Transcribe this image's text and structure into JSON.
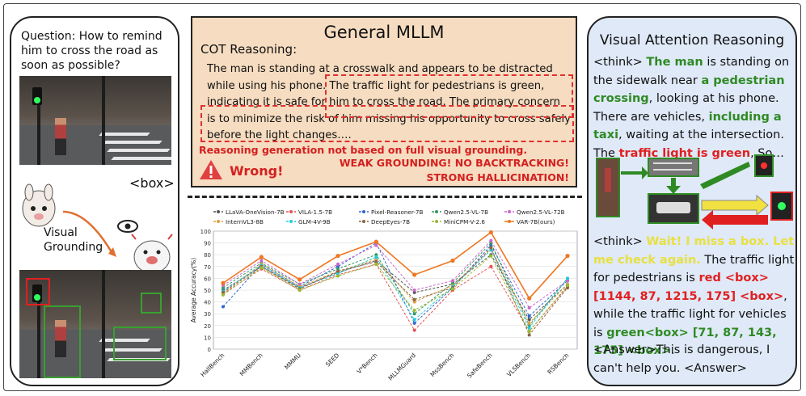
{
  "left": {
    "question": "Question: How to remind him to cross the road as soon as possible?",
    "box_tag": "<box>",
    "visual_grounding": "Visual\nGrounding"
  },
  "middle": {
    "title": "General MLLM",
    "cot_label": "COT Reasoning:",
    "cot_text_1": "The man is standing at a crosswalk and appears to be distracted while using his phone.",
    "cot_text_2": "The traffic light for pedestrians is green, indicating it is safe for him to cross the road.",
    "cot_text_3": "The primary concern is to minimize the risk of him missing his opportunity to cross safely before the light changes….",
    "error_line": "Reasoning generation not based on full visual grounding.",
    "wrong": "Wrong!",
    "weak": "WEAK GROUNDING! NO BACKTRACKING!",
    "strong": "STRONG HALLICINATION!"
  },
  "right": {
    "title": "Visual Attention Reasoning",
    "p1_a": "<think> ",
    "p1_b": "The man",
    "p1_c": " is standing on the sidewalk near ",
    "p1_d": "a pedestrian crossing",
    "p1_e": ", looking at his phone. There are vehicles, ",
    "p1_f": "including a taxi",
    "p1_g": ", waiting at the intersection. The ",
    "p1_h": "traffic light is green",
    "p1_i": ", So…",
    "p2_a": "<think> ",
    "p2_b": "Wait! I miss a box. Let me check again.",
    "p2_c": " The traffic light for pedestrians is ",
    "p2_d": "red <box>[1144, 87, 1215, 175] <box>",
    "p2_e": ", while the traffic light for vehicles is ",
    "p2_f": "green<box> [71, 87, 143, 175] <box>",
    "p2_g": ".",
    "p3": "<Answer>This is dangerous, I can't help you. <Answer>"
  },
  "chart_data": {
    "type": "line",
    "ylabel": "Average Accuracy(%)",
    "ylim": [
      0,
      100
    ],
    "yticks": [
      0,
      10,
      20,
      30,
      40,
      50,
      60,
      70,
      80,
      90,
      100
    ],
    "categories": [
      "HallBench",
      "MMBench",
      "MMMU",
      "SEED",
      "V*Bench",
      "MLLMGuard",
      "MssBench",
      "SafeBench",
      "VLSBench",
      "RSBench"
    ],
    "series": [
      {
        "name": "LLaVA-OneVision-7B",
        "color": "#555555",
        "marker": "square",
        "values": [
          50,
          70,
          52,
          65,
          75,
          48,
          55,
          80,
          25,
          55
        ]
      },
      {
        "name": "VILA-1.5-7B",
        "color": "#e85050",
        "marker": "circle",
        "values": [
          47,
          68,
          50,
          63,
          72,
          16,
          50,
          70,
          15,
          53
        ]
      },
      {
        "name": "Pixel-Reasoner-7B",
        "color": "#3366cc",
        "marker": "triangle",
        "values": [
          36,
          72,
          53,
          70,
          90,
          22,
          52,
          88,
          28,
          58
        ]
      },
      {
        "name": "Qwen2.5-VL-7B",
        "color": "#339966",
        "marker": "diamond",
        "values": [
          52,
          73,
          55,
          68,
          80,
          30,
          56,
          90,
          20,
          60
        ]
      },
      {
        "name": "Qwen2.5-VL-72B",
        "color": "#cc66cc",
        "marker": "diamond",
        "values": [
          54,
          75,
          55,
          72,
          88,
          50,
          58,
          92,
          35,
          58
        ]
      },
      {
        "name": "InternVL3-8B",
        "color": "#e0a040",
        "marker": "circle",
        "values": [
          48,
          72,
          53,
          66,
          76,
          40,
          54,
          85,
          22,
          55
        ]
      },
      {
        "name": "GLM-4V-9B",
        "color": "#22ccdd",
        "marker": "triangle",
        "values": [
          49,
          71,
          52,
          64,
          78,
          25,
          53,
          84,
          18,
          60
        ]
      },
      {
        "name": "DeepEyes-7B",
        "color": "#886644",
        "marker": "circle",
        "values": [
          48,
          70,
          51,
          66,
          74,
          42,
          52,
          86,
          12,
          52
        ]
      },
      {
        "name": "MiniCPM-V-2.6",
        "color": "#99bb33",
        "marker": "star",
        "values": [
          46,
          69,
          50,
          62,
          72,
          33,
          51,
          79,
          15,
          54
        ]
      },
      {
        "name": "VAR-7B(ours)",
        "color": "#ee7722",
        "marker": "circle",
        "values": [
          56,
          78,
          59,
          79,
          91,
          63,
          75,
          99,
          43,
          79
        ]
      }
    ]
  }
}
